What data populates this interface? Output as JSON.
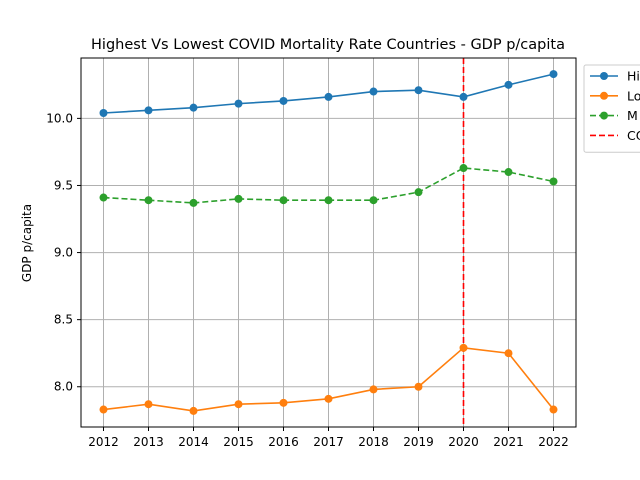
{
  "chart_data": {
    "type": "line",
    "title": "Highest Vs Lowest COVID Mortality Rate Countries - GDP p/capita",
    "xlabel": "",
    "ylabel": "GDP p/capita",
    "x": [
      "2012",
      "2013",
      "2014",
      "2015",
      "2016",
      "2017",
      "2018",
      "2019",
      "2020",
      "2021",
      "2022"
    ],
    "xlim": [
      2011.5,
      2022.5
    ],
    "ylim": [
      7.7,
      10.45
    ],
    "yticks": [
      "8.0",
      "8.5",
      "9.0",
      "9.5",
      "10.0"
    ],
    "grid": true,
    "legend_position": "right",
    "series": [
      {
        "name": "Hi",
        "color": "#1f77b4",
        "style": "solid",
        "marker": "circle",
        "values": [
          10.04,
          10.06,
          10.08,
          10.11,
          10.13,
          10.16,
          10.2,
          10.21,
          10.16,
          10.25,
          10.33
        ]
      },
      {
        "name": "Lo",
        "color": "#ff7f0e",
        "style": "solid",
        "marker": "circle",
        "values": [
          7.83,
          7.87,
          7.82,
          7.87,
          7.88,
          7.91,
          7.98,
          8.0,
          8.29,
          8.25,
          7.83
        ]
      },
      {
        "name": "M",
        "color": "#2ca02c",
        "style": "dashed",
        "marker": "circle",
        "values": [
          9.41,
          9.39,
          9.37,
          9.4,
          9.39,
          9.39,
          9.39,
          9.45,
          9.63,
          9.6,
          9.53
        ]
      }
    ],
    "annotations": [
      {
        "type": "vline",
        "x": 2020,
        "name": "CO",
        "color": "#ff0000",
        "style": "dashed"
      }
    ]
  }
}
